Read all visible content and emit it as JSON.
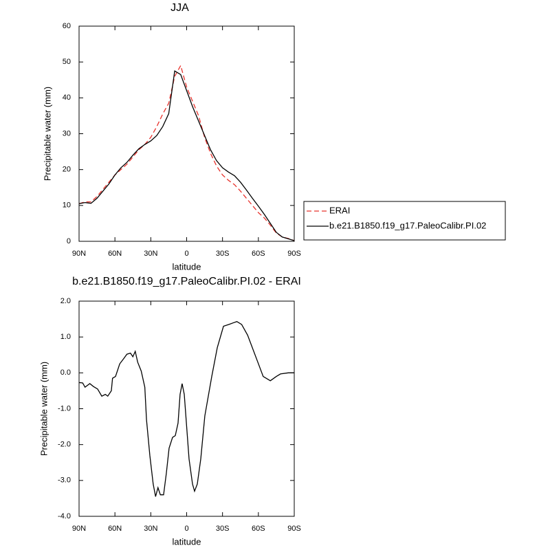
{
  "chart_data": [
    {
      "type": "line",
      "title": "JJA",
      "xlabel": "latitude",
      "ylabel": "Precipitable water (mm)",
      "x": [
        90,
        85,
        80,
        75,
        70,
        65,
        60,
        55,
        50,
        45,
        40,
        35,
        30,
        25,
        20,
        15,
        10,
        5,
        0,
        -5,
        -10,
        -15,
        -20,
        -25,
        -30,
        -35,
        -40,
        -45,
        -50,
        -55,
        -60,
        -65,
        -70,
        -75,
        -80,
        -85,
        -90
      ],
      "series": [
        {
          "name": "ERAI",
          "color": "#e8312b",
          "style": "dashed",
          "values": [
            10.5,
            11,
            11,
            12.5,
            14.5,
            16.5,
            18.5,
            20,
            21.5,
            23.5,
            25.5,
            27,
            29,
            32,
            35.5,
            38.5,
            46,
            49,
            43,
            39,
            35,
            29,
            24.5,
            21,
            18.5,
            17,
            15.8,
            14,
            12,
            10,
            8,
            6.5,
            4.5,
            2.3,
            1.2,
            0.8,
            0.2
          ]
        },
        {
          "name": "b.e21.B1850.f19_g17.PaleoCalibr.PI.02",
          "color": "#000000",
          "style": "solid",
          "values": [
            10.5,
            10.8,
            10.6,
            12,
            14,
            16,
            18.5,
            20.5,
            22,
            24,
            25.8,
            27,
            28,
            29.5,
            32,
            35.6,
            47.5,
            46.5,
            42,
            37.5,
            33.5,
            29.5,
            25.5,
            22.5,
            20.5,
            19.3,
            18.3,
            16.5,
            14.3,
            12,
            9.8,
            7.5,
            5,
            2.5,
            1.2,
            0.7,
            0.2
          ]
        }
      ],
      "xlim": [
        90,
        -90
      ],
      "xticks": [
        {
          "value": 90,
          "label": "90N"
        },
        {
          "value": 60,
          "label": "60N"
        },
        {
          "value": 30,
          "label": "30N"
        },
        0,
        {
          "value": -30,
          "label": "30S"
        },
        {
          "value": -60,
          "label": "60S"
        },
        {
          "value": -90,
          "label": "90S"
        }
      ],
      "ylim": [
        0,
        60
      ],
      "yticks": [
        0,
        10,
        20,
        30,
        40,
        50,
        60
      ],
      "grid": false,
      "legend": "right"
    },
    {
      "type": "line",
      "title": "b.e21.B1850.f19_g17.PaleoCalibr.PI.02 - ERAI",
      "xlabel": "latitude",
      "ylabel": "Precipitable water (mm)",
      "x": [
        90,
        87,
        85,
        81,
        78,
        74.5,
        71,
        68,
        66,
        63,
        62,
        59.5,
        56,
        52.6,
        50,
        47,
        45,
        43,
        41,
        38,
        35,
        33.6,
        30.8,
        28,
        26,
        24,
        22,
        19.3,
        17,
        14.7,
        11.8,
        9.5,
        7.2,
        5.5,
        3.8,
        2,
        -2,
        -4.9,
        -6.6,
        -8.9,
        -11.8,
        -15.2,
        -21,
        -25.6,
        -30.8,
        -35.4,
        -39.4,
        -42,
        -46,
        -51,
        -59.5,
        -64,
        -70,
        -75,
        -78.5,
        -85,
        -90
      ],
      "values": [
        -0.27,
        -0.28,
        -0.4,
        -0.3,
        -0.38,
        -0.45,
        -0.65,
        -0.6,
        -0.65,
        -0.5,
        -0.15,
        -0.1,
        0.25,
        0.4,
        0.52,
        0.55,
        0.45,
        0.6,
        0.3,
        0.05,
        -0.4,
        -1.3,
        -2.3,
        -3.1,
        -3.45,
        -3.2,
        -3.4,
        -3.4,
        -2.8,
        -2.1,
        -1.8,
        -1.75,
        -1.4,
        -0.6,
        -0.3,
        -0.6,
        -2.4,
        -3.1,
        -3.3,
        -3.1,
        -2.4,
        -1.2,
        -0.1,
        0.7,
        1.3,
        1.35,
        1.4,
        1.43,
        1.35,
        1.05,
        0.3,
        -0.1,
        -0.22,
        -0.1,
        -0.03,
        0.0,
        0.0
      ],
      "color": "#000000",
      "xlim": [
        90,
        -90
      ],
      "xticks": [
        {
          "value": 90,
          "label": "90N"
        },
        {
          "value": 60,
          "label": "60N"
        },
        {
          "value": 30,
          "label": "30N"
        },
        0,
        {
          "value": -30,
          "label": "30S"
        },
        {
          "value": -60,
          "label": "60S"
        },
        {
          "value": -90,
          "label": "90S"
        }
      ],
      "ylim": [
        -4,
        2
      ],
      "yticks": [
        {
          "value": -4,
          "label": "-4.0"
        },
        {
          "value": -3,
          "label": "-3.0"
        },
        {
          "value": -2,
          "label": "-2.0"
        },
        {
          "value": -1,
          "label": "-1.0"
        },
        {
          "value": 0,
          "label": "0.0"
        },
        {
          "value": 1,
          "label": "1.0"
        },
        {
          "value": 2,
          "label": "2.0"
        }
      ],
      "grid": false
    }
  ]
}
